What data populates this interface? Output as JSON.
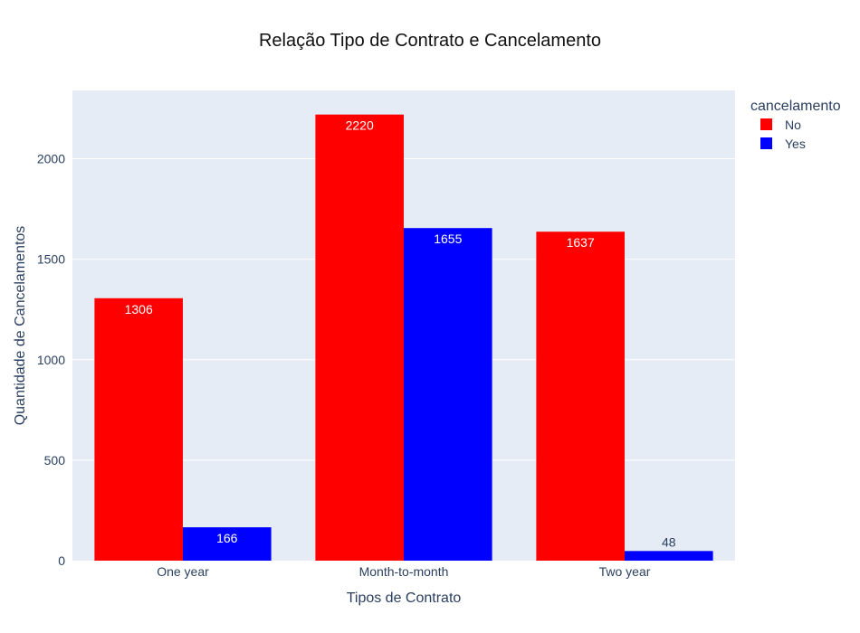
{
  "chart_data": {
    "type": "bar",
    "title": "Relação Tipo de Contrato e Cancelamento",
    "xlabel": "Tipos de Contrato",
    "ylabel": "Quantidade de Cancelamentos",
    "categories": [
      "One year",
      "Month-to-month",
      "Two year"
    ],
    "series": [
      {
        "name": "No",
        "color": "#ff0000",
        "values": [
          1306,
          2220,
          1637
        ]
      },
      {
        "name": "Yes",
        "color": "#0000ff",
        "values": [
          166,
          1655,
          48
        ]
      }
    ],
    "ylim": [
      0,
      2340
    ],
    "yticks": [
      0,
      500,
      1000,
      1500,
      2000
    ],
    "grid": true,
    "legend": {
      "title": "cancelamento",
      "placement": "top-right"
    },
    "plot_background": "#e5ecf6"
  }
}
